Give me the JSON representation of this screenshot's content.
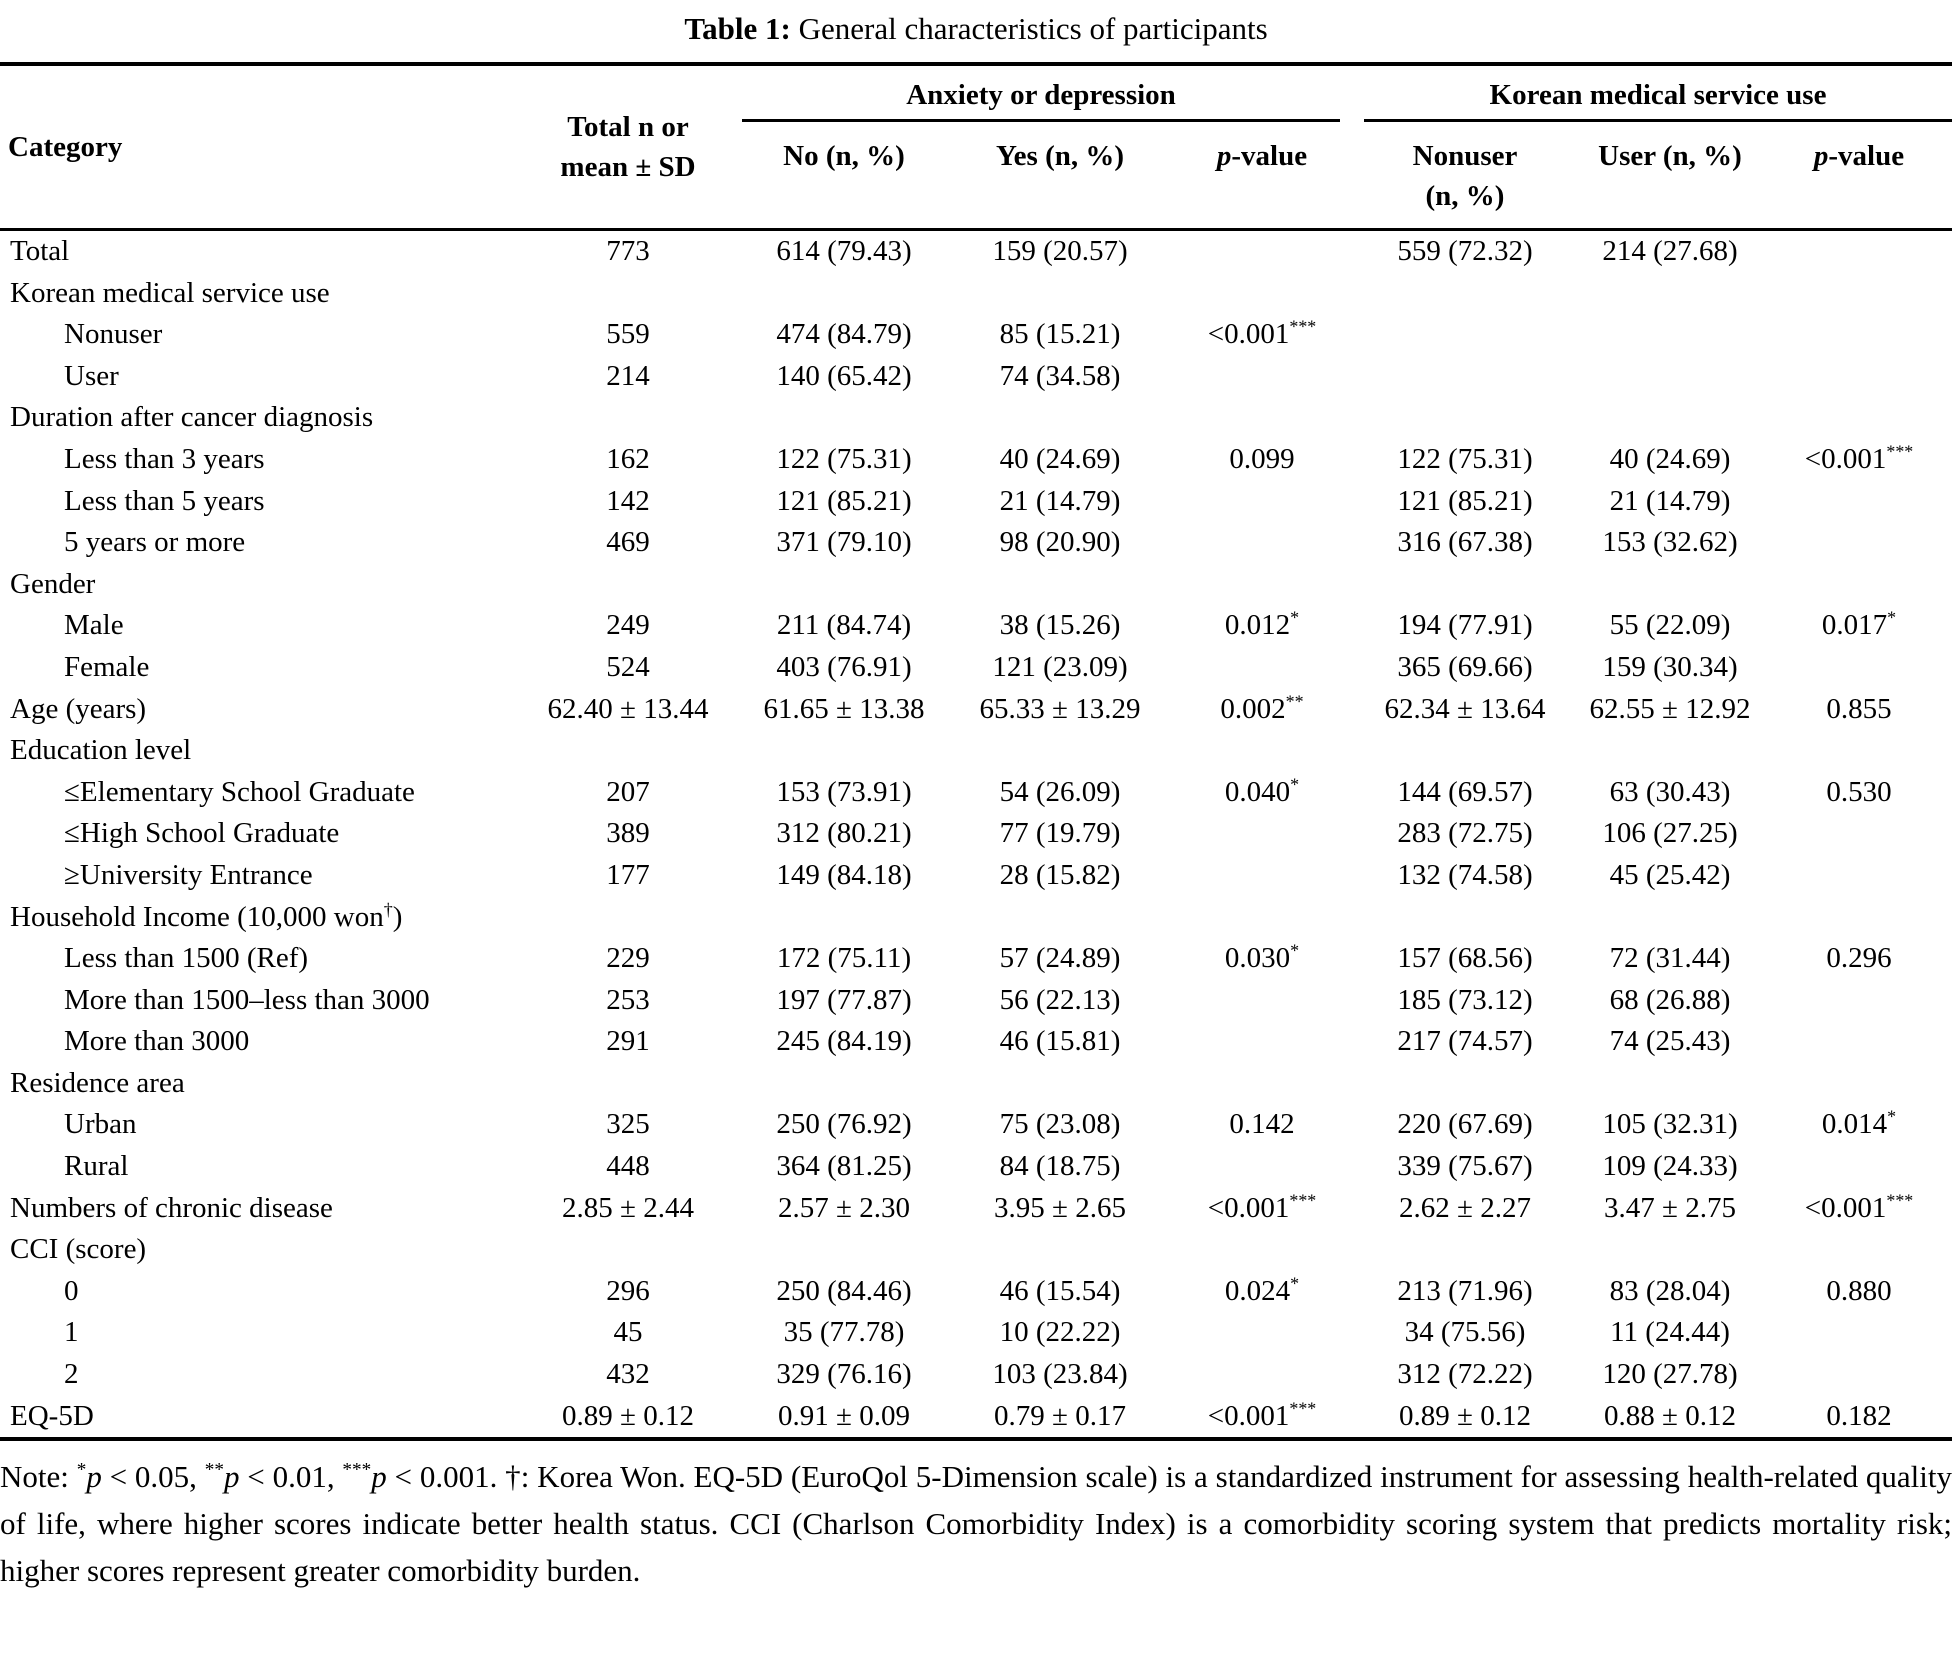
{
  "title": {
    "bold": "Table 1:",
    "rest": " General characteristics of participants"
  },
  "table": {
    "header": {
      "category": "Category",
      "total": "Total n or\nmean ± SD",
      "group_anxiety": "Anxiety or depression",
      "group_korean": "Korean medical service use",
      "col_no": "No (n, %)",
      "col_yes": "Yes (n, %)",
      "col_p1": "p-value",
      "col_nonuser": "Nonuser\n(n, %)",
      "col_user": "User (n, %)",
      "col_p2": "p-value"
    },
    "rows": [
      {
        "label": "Total",
        "indent": 0,
        "values": [
          "773",
          "614 (79.43)",
          "159 (20.57)",
          "",
          "559 (72.32)",
          "214 (27.68)",
          ""
        ]
      },
      {
        "label": "Korean medical service use",
        "indent": 0,
        "values": [
          "",
          "",
          "",
          "",
          "",
          "",
          ""
        ]
      },
      {
        "label": "Nonuser",
        "indent": 1,
        "values": [
          "559",
          "474 (84.79)",
          "85 (15.21)",
          "<0.001***",
          "",
          "",
          ""
        ]
      },
      {
        "label": "User",
        "indent": 1,
        "values": [
          "214",
          "140 (65.42)",
          "74 (34.58)",
          "",
          "",
          "",
          ""
        ]
      },
      {
        "label": "Duration after cancer diagnosis",
        "indent": 0,
        "values": [
          "",
          "",
          "",
          "",
          "",
          "",
          ""
        ]
      },
      {
        "label": "Less than 3 years",
        "indent": 1,
        "values": [
          "162",
          "122 (75.31)",
          "40 (24.69)",
          "0.099",
          "122 (75.31)",
          "40 (24.69)",
          "<0.001***"
        ]
      },
      {
        "label": "Less than 5 years",
        "indent": 1,
        "values": [
          "142",
          "121 (85.21)",
          "21 (14.79)",
          "",
          "121 (85.21)",
          "21 (14.79)",
          ""
        ]
      },
      {
        "label": "5 years or more",
        "indent": 1,
        "values": [
          "469",
          "371 (79.10)",
          "98 (20.90)",
          "",
          "316 (67.38)",
          "153 (32.62)",
          ""
        ]
      },
      {
        "label": "Gender",
        "indent": 0,
        "values": [
          "",
          "",
          "",
          "",
          "",
          "",
          ""
        ]
      },
      {
        "label": "Male",
        "indent": 1,
        "values": [
          "249",
          "211 (84.74)",
          "38 (15.26)",
          "0.012*",
          "194 (77.91)",
          "55 (22.09)",
          "0.017*"
        ]
      },
      {
        "label": "Female",
        "indent": 1,
        "values": [
          "524",
          "403 (76.91)",
          "121 (23.09)",
          "",
          "365 (69.66)",
          "159 (30.34)",
          ""
        ]
      },
      {
        "label": "Age (years)",
        "indent": 0,
        "values": [
          "62.40 ± 13.44",
          "61.65 ± 13.38",
          "65.33 ± 13.29",
          "0.002**",
          "62.34 ± 13.64",
          "62.55 ± 12.92",
          "0.855"
        ]
      },
      {
        "label": "Education level",
        "indent": 0,
        "values": [
          "",
          "",
          "",
          "",
          "",
          "",
          ""
        ]
      },
      {
        "label": "≤Elementary School Graduate",
        "indent": 1,
        "values": [
          "207",
          "153 (73.91)",
          "54 (26.09)",
          "0.040*",
          "144 (69.57)",
          "63 (30.43)",
          "0.530"
        ]
      },
      {
        "label": "≤High School Graduate",
        "indent": 1,
        "values": [
          "389",
          "312 (80.21)",
          "77 (19.79)",
          "",
          "283 (72.75)",
          "106 (27.25)",
          ""
        ]
      },
      {
        "label": "≥University Entrance",
        "indent": 1,
        "values": [
          "177",
          "149 (84.18)",
          "28 (15.82)",
          "",
          "132 (74.58)",
          "45 (25.42)",
          ""
        ]
      },
      {
        "label": "Household Income (10,000 won†)",
        "indent": 0,
        "values": [
          "",
          "",
          "",
          "",
          "",
          "",
          ""
        ]
      },
      {
        "label": "Less than 1500 (Ref)",
        "indent": 1,
        "values": [
          "229",
          "172 (75.11)",
          "57 (24.89)",
          "0.030*",
          "157 (68.56)",
          "72 (31.44)",
          "0.296"
        ]
      },
      {
        "label": "More than 1500–less than 3000",
        "indent": 1,
        "values": [
          "253",
          "197 (77.87)",
          "56 (22.13)",
          "",
          "185 (73.12)",
          "68 (26.88)",
          ""
        ]
      },
      {
        "label": "More than 3000",
        "indent": 1,
        "values": [
          "291",
          "245 (84.19)",
          "46 (15.81)",
          "",
          "217 (74.57)",
          "74 (25.43)",
          ""
        ]
      },
      {
        "label": "Residence area",
        "indent": 0,
        "values": [
          "",
          "",
          "",
          "",
          "",
          "",
          ""
        ]
      },
      {
        "label": "Urban",
        "indent": 1,
        "values": [
          "325",
          "250 (76.92)",
          "75 (23.08)",
          "0.142",
          "220 (67.69)",
          "105 (32.31)",
          "0.014*"
        ]
      },
      {
        "label": "Rural",
        "indent": 1,
        "values": [
          "448",
          "364 (81.25)",
          "84 (18.75)",
          "",
          "339 (75.67)",
          "109 (24.33)",
          ""
        ]
      },
      {
        "label": "Numbers of chronic disease",
        "indent": 0,
        "values": [
          "2.85 ± 2.44",
          "2.57 ± 2.30",
          "3.95 ± 2.65",
          "<0.001***",
          "2.62 ± 2.27",
          "3.47 ± 2.75",
          "<0.001***"
        ]
      },
      {
        "label": "CCI (score)",
        "indent": 0,
        "values": [
          "",
          "",
          "",
          "",
          "",
          "",
          ""
        ]
      },
      {
        "label": "0",
        "indent": 1,
        "values": [
          "296",
          "250 (84.46)",
          "46 (15.54)",
          "0.024*",
          "213 (71.96)",
          "83 (28.04)",
          "0.880"
        ]
      },
      {
        "label": "1",
        "indent": 1,
        "values": [
          "45",
          "35 (77.78)",
          "10 (22.22)",
          "",
          "34 (75.56)",
          "11 (24.44)",
          ""
        ]
      },
      {
        "label": "2",
        "indent": 1,
        "values": [
          "432",
          "329 (76.16)",
          "103 (23.84)",
          "",
          "312 (72.22)",
          "120 (27.78)",
          ""
        ]
      },
      {
        "label": "EQ-5D",
        "indent": 0,
        "values": [
          "0.89 ± 0.12",
          "0.91 ± 0.09",
          "0.79 ± 0.17",
          "<0.001***",
          "0.89 ± 0.12",
          "0.88 ± 0.12",
          "0.182"
        ]
      }
    ]
  },
  "note": "Note: *p < 0.05, **p < 0.01, ***p < 0.001. †: Korea Won. EQ-5D (EuroQol 5-Dimension scale) is a standardized instrument for assessing health-related quality of life, where higher scores indicate better health status. CCI (Charlson Comorbidity Index) is a comorbidity scoring system that predicts mortality risk; higher scores represent greater comorbidity burden."
}
